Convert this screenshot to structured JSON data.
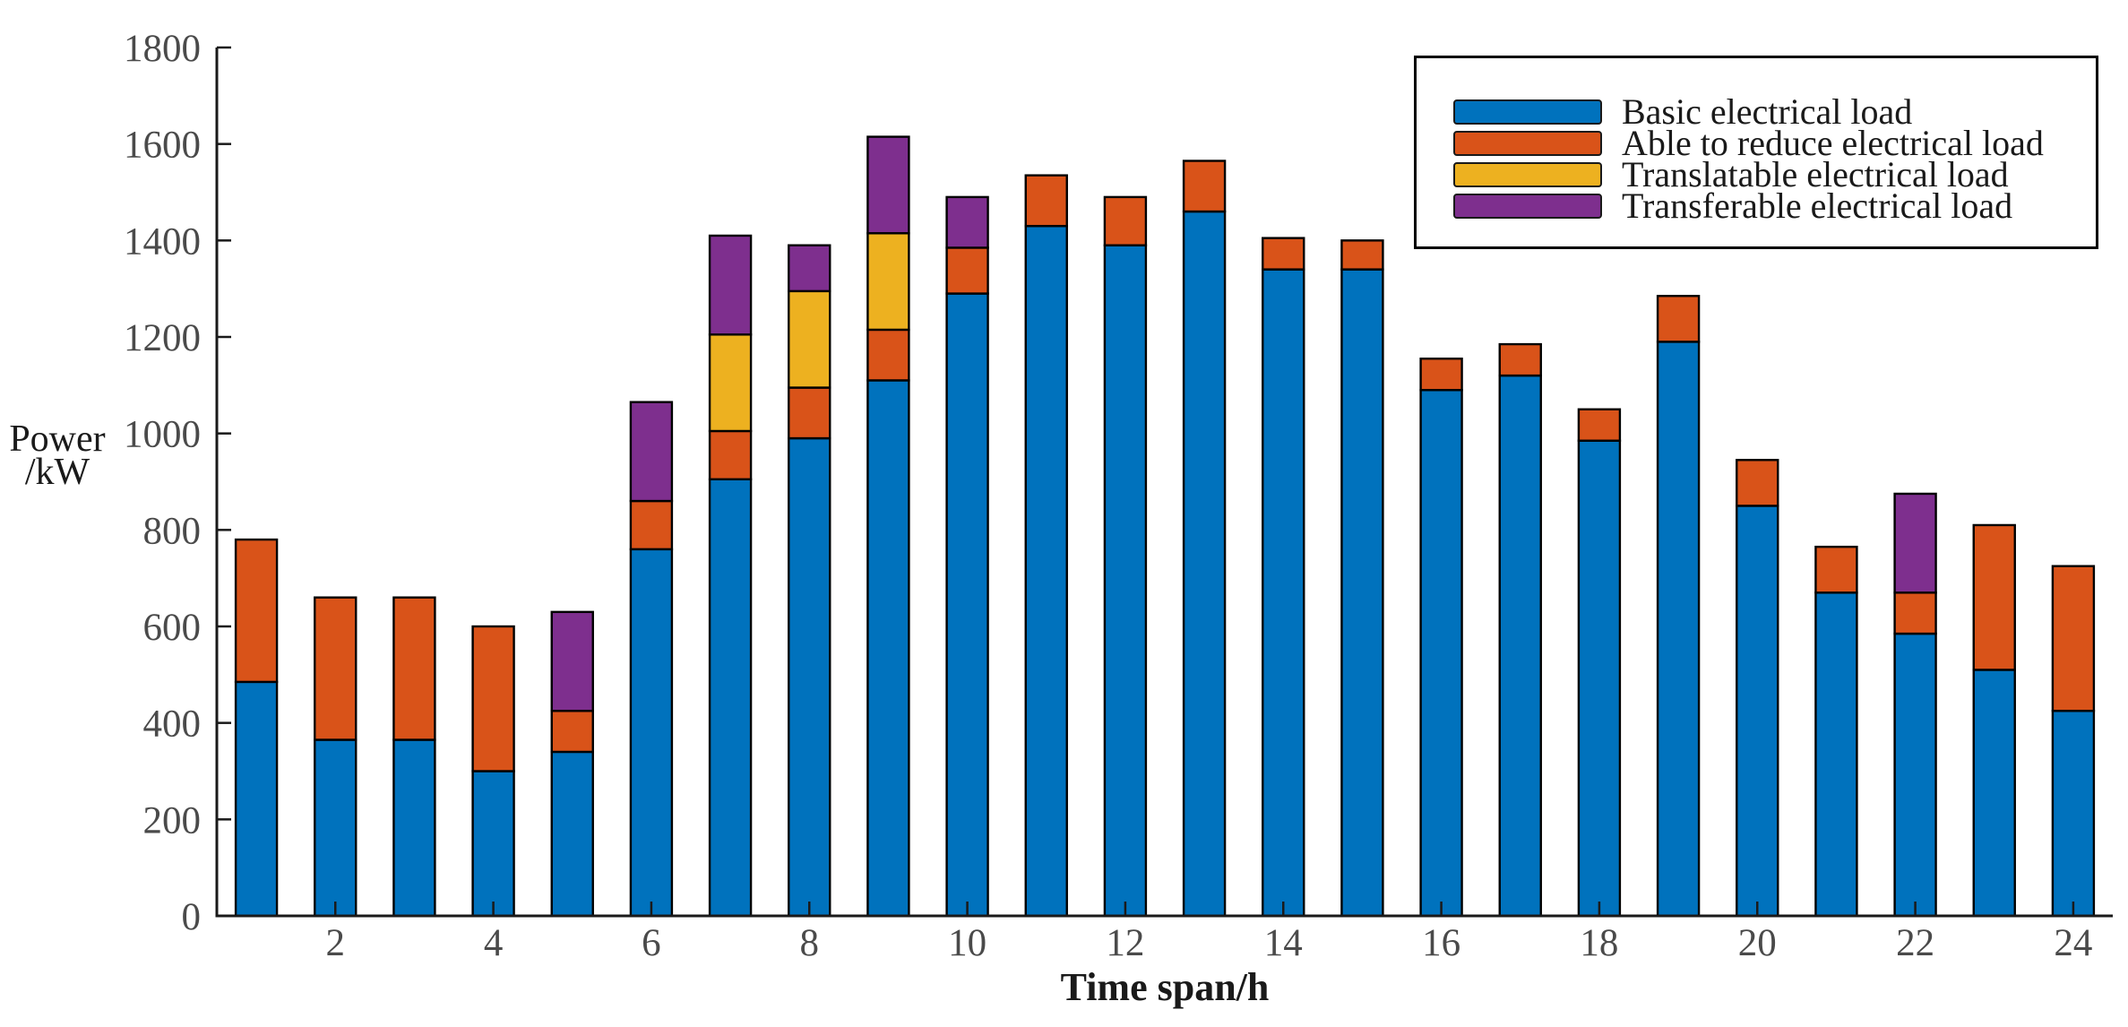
{
  "figure": {
    "background": "#ffffff",
    "axis_color": "#1a1a1a",
    "tick_label_color": "#4a4a4a"
  },
  "y_axis": {
    "label_line1": "Power",
    "label_line2": "/kW",
    "min": 0,
    "max": 1800,
    "tick_step": 200
  },
  "x_axis": {
    "label": "Time span/h",
    "labeled_ticks": [
      2,
      4,
      6,
      8,
      10,
      12,
      14,
      16,
      18,
      20,
      22,
      24
    ]
  },
  "legend": {
    "entries": [
      {
        "label": "Basic electrical load",
        "color": "#0072BD"
      },
      {
        "label": "Able to reduce electrical load",
        "color": "#D95319"
      },
      {
        "label": "Translatable electrical load",
        "color": "#EDB120"
      },
      {
        "label": "Transferable electrical load",
        "color": "#7E2F8E"
      }
    ]
  },
  "chart_data": {
    "type": "bar",
    "stacked": true,
    "title": "",
    "xlabel": "Time span/h",
    "ylabel": "Power /kW",
    "ylim": [
      0,
      1800
    ],
    "ytick_step": 200,
    "grid": false,
    "legend_position": "top-right",
    "bar_edge_color": "#000000",
    "categories": [
      1,
      2,
      3,
      4,
      5,
      6,
      7,
      8,
      9,
      10,
      11,
      12,
      13,
      14,
      15,
      16,
      17,
      18,
      19,
      20,
      21,
      22,
      23,
      24
    ],
    "series": [
      {
        "name": "Basic electrical load",
        "color": "#0072BD",
        "values": [
          485,
          365,
          365,
          300,
          340,
          760,
          905,
          990,
          1110,
          1290,
          1430,
          1390,
          1460,
          1340,
          1340,
          1090,
          1120,
          985,
          1190,
          850,
          670,
          585,
          510,
          425
        ]
      },
      {
        "name": "Able to reduce electrical load",
        "color": "#D95319",
        "values": [
          295,
          295,
          295,
          300,
          85,
          100,
          100,
          105,
          105,
          95,
          105,
          100,
          105,
          65,
          60,
          65,
          65,
          65,
          95,
          95,
          95,
          85,
          300,
          300
        ]
      },
      {
        "name": "Translatable electrical load",
        "color": "#EDB120",
        "values": [
          0,
          0,
          0,
          0,
          0,
          0,
          200,
          200,
          200,
          0,
          0,
          0,
          0,
          0,
          0,
          0,
          0,
          0,
          0,
          0,
          0,
          0,
          0,
          0
        ]
      },
      {
        "name": "Transferable electrical load",
        "color": "#7E2F8E",
        "values": [
          0,
          0,
          0,
          0,
          205,
          205,
          205,
          95,
          200,
          105,
          0,
          0,
          0,
          0,
          0,
          0,
          0,
          0,
          0,
          0,
          0,
          205,
          0,
          0
        ]
      }
    ],
    "totals": [
      780,
      660,
      660,
      600,
      630,
      1065,
      1410,
      1390,
      1615,
      1490,
      1535,
      1490,
      1565,
      1405,
      1400,
      1155,
      1185,
      1050,
      1285,
      945,
      765,
      875,
      810,
      725
    ]
  }
}
